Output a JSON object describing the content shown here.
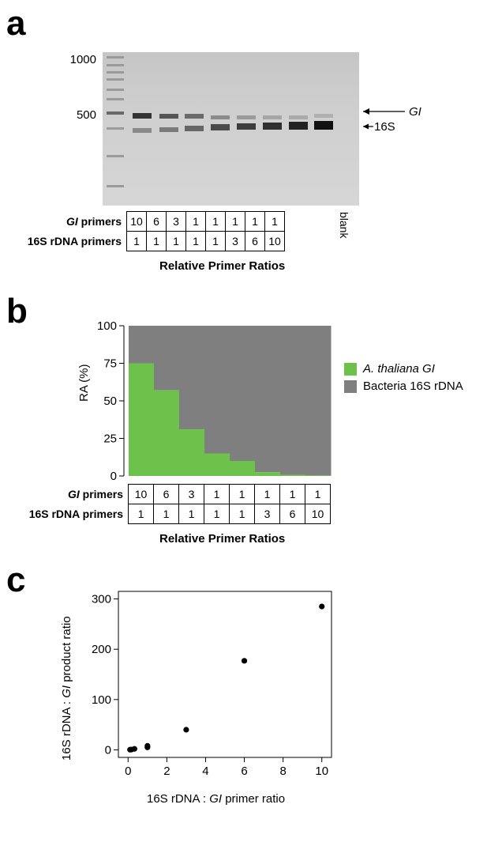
{
  "panels": {
    "a": "a",
    "b": "b",
    "c": "c"
  },
  "gel": {
    "ladder": [
      "1000",
      "500"
    ],
    "bands": {
      "gi": "GI",
      "s16": "16S"
    },
    "blank_label": "blank"
  },
  "primer_table": {
    "gi_label_italic": "GI",
    "gi_label_rest": " primers",
    "s16_label": "16S rDNA primers",
    "gi_values": [
      "10",
      "6",
      "3",
      "1",
      "1",
      "1",
      "1",
      "1"
    ],
    "s16_values": [
      "1",
      "1",
      "1",
      "1",
      "1",
      "3",
      "6",
      "10"
    ],
    "title": "Relative Primer Ratios"
  },
  "chart_data": [
    {
      "type": "bar",
      "stacked": true,
      "categories": [
        "10:1",
        "6:1",
        "3:1",
        "1:1",
        "1:1",
        "1:3",
        "1:6",
        "1:10"
      ],
      "series": [
        {
          "name": "A. thaliana GI",
          "color": "#6cc24a",
          "values": [
            75,
            57,
            31,
            15,
            10,
            2.5,
            0.8,
            0.3
          ]
        },
        {
          "name": "Bacteria 16S rDNA",
          "color": "#7f7f7f",
          "values": [
            25,
            43,
            69,
            85,
            90,
            97.5,
            99.2,
            99.7
          ]
        }
      ],
      "ylabel": "RA (%)",
      "yticks": [
        "0",
        "25",
        "50",
        "75",
        "100"
      ],
      "ylim": [
        0,
        100
      ],
      "legend": "right"
    },
    {
      "type": "scatter",
      "points": [
        {
          "x": 0.1,
          "y": 0.3
        },
        {
          "x": 0.17,
          "y": 0.6
        },
        {
          "x": 0.33,
          "y": 2
        },
        {
          "x": 1,
          "y": 5
        },
        {
          "x": 1,
          "y": 8
        },
        {
          "x": 3,
          "y": 40
        },
        {
          "x": 6,
          "y": 177
        },
        {
          "x": 10,
          "y": 285
        }
      ],
      "xlim": [
        -0.5,
        10.5
      ],
      "ylim": [
        -15,
        315
      ],
      "xticks": [
        "0",
        "2",
        "4",
        "6",
        "8",
        "10"
      ],
      "yticks": [
        "0",
        "100",
        "200",
        "300"
      ],
      "xlabel_parts": [
        "16S rDNA : ",
        "GI",
        " primer ratio"
      ],
      "ylabel_parts": [
        "16S rDNA : ",
        "GI",
        " product ratio"
      ]
    }
  ]
}
